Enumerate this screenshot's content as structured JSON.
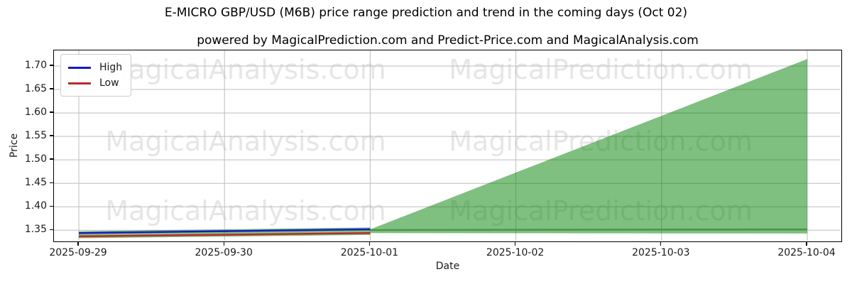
{
  "figure": {
    "title": "E-MICRO GBP/USD (M6B) price range prediction and trend in the coming days (Oct 02)",
    "subtitle": "powered by MagicalPrediction.com and Predict-Price.com and MagicalAnalysis.com"
  },
  "axes": {
    "xlabel": "Date",
    "ylabel": "Price",
    "x_ticks": [
      "2025-09-29",
      "2025-09-30",
      "2025-10-01",
      "2025-10-02",
      "2025-10-03",
      "2025-10-04"
    ],
    "y_ticks": [
      "1.35",
      "1.40",
      "1.45",
      "1.50",
      "1.55",
      "1.60",
      "1.65",
      "1.70"
    ]
  },
  "legend": {
    "items": [
      {
        "label": "High",
        "color": "#1919c8"
      },
      {
        "label": "Low",
        "color": "#be2828"
      }
    ]
  },
  "watermark": {
    "left_text": "MagicalAnalysis.com",
    "right_text": "MagicalPrediction.com",
    "color": "#e6e6e6"
  },
  "colors": {
    "band_fill": "#008000",
    "band_opacity": 0.5,
    "trend_line": "#3f9142",
    "grid": "#bdbdbd"
  },
  "chart_data": {
    "type": "line",
    "title": "E-MICRO GBP/USD (M6B) price range prediction and trend in the coming days (Oct 02)",
    "xlabel": "Date",
    "ylabel": "Price",
    "x": [
      "2025-09-29",
      "2025-09-30",
      "2025-10-01",
      "2025-10-02",
      "2025-10-03",
      "2025-10-04"
    ],
    "ylim": [
      1.323,
      1.733
    ],
    "grid": true,
    "legend_position": "upper left",
    "series": [
      {
        "name": "History range band",
        "type": "band",
        "in_legend": false,
        "x": [
          "2025-09-29",
          "2025-09-30",
          "2025-10-01"
        ],
        "upper": [
          1.348,
          1.352,
          1.356
        ],
        "lower": [
          1.333,
          1.3365,
          1.34
        ]
      },
      {
        "name": "Forecast range fan",
        "type": "band",
        "in_legend": false,
        "x": [
          "2025-10-01",
          "2025-10-02",
          "2025-10-03",
          "2025-10-04"
        ],
        "upper": [
          1.352,
          1.473,
          1.594,
          1.715
        ],
        "lower": [
          1.344,
          1.3437,
          1.3433,
          1.343
        ]
      },
      {
        "name": "Forecast trend",
        "type": "trend",
        "in_legend": false,
        "x": [
          "2025-10-01",
          "2025-10-02",
          "2025-10-03",
          "2025-10-04"
        ],
        "values": [
          1.3505,
          1.351,
          1.3515,
          1.352
        ]
      },
      {
        "name": "High",
        "type": "line",
        "in_legend": true,
        "color": "#1919c8",
        "x": [
          "2025-09-29",
          "2025-09-30",
          "2025-10-01"
        ],
        "values": [
          1.344,
          1.348,
          1.352
        ]
      },
      {
        "name": "Low",
        "type": "line",
        "in_legend": true,
        "color": "#be2828",
        "x": [
          "2025-09-29",
          "2025-09-30",
          "2025-10-01"
        ],
        "values": [
          1.337,
          1.3405,
          1.344
        ]
      }
    ]
  }
}
